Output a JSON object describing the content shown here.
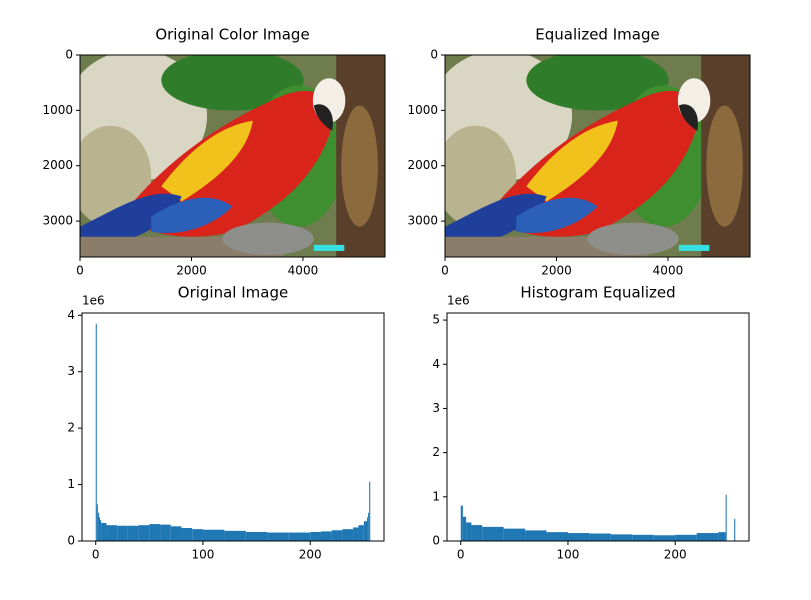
{
  "chart_data": [
    {
      "type": "image",
      "title": "Original Color Image",
      "xlim": [
        0,
        5472
      ],
      "ylim": [
        3648,
        0
      ],
      "xticks": [
        0,
        2000,
        4000
      ],
      "yticks": [
        0,
        1000,
        2000,
        3000
      ]
    },
    {
      "type": "image",
      "title": "Equalized Image",
      "xlim": [
        0,
        5472
      ],
      "ylim": [
        3648,
        0
      ],
      "xticks": [
        0,
        2000,
        4000
      ],
      "yticks": [
        0,
        1000,
        2000,
        3000
      ]
    },
    {
      "type": "histogram",
      "title": "Original Image",
      "offset_label": "1e6",
      "color": "#1f77b4",
      "bins": [
        0,
        1,
        2,
        3,
        4,
        5,
        10,
        20,
        30,
        40,
        50,
        60,
        70,
        80,
        90,
        100,
        120,
        140,
        160,
        180,
        200,
        210,
        220,
        230,
        240,
        245,
        250,
        253,
        254,
        255,
        256
      ],
      "values": [
        3.85,
        0.65,
        0.5,
        0.42,
        0.37,
        0.32,
        0.28,
        0.27,
        0.27,
        0.28,
        0.3,
        0.29,
        0.26,
        0.23,
        0.21,
        0.2,
        0.18,
        0.16,
        0.15,
        0.15,
        0.16,
        0.17,
        0.19,
        0.21,
        0.24,
        0.28,
        0.35,
        0.42,
        0.5,
        1.05
      ],
      "xlim": [
        -12.8,
        268.8
      ],
      "ylim": [
        0,
        4.04
      ],
      "xticks": [
        0,
        100,
        200
      ],
      "yticks": [
        0,
        1,
        2,
        3,
        4
      ]
    },
    {
      "type": "histogram",
      "title": "Histogram Equalized",
      "offset_label": "1e6",
      "color": "#1f77b4",
      "bins": [
        0,
        2,
        5,
        10,
        20,
        40,
        60,
        80,
        100,
        120,
        140,
        160,
        180,
        200,
        220,
        240,
        247,
        248,
        255,
        256
      ],
      "values": [
        0.8,
        0.55,
        0.42,
        0.36,
        0.32,
        0.28,
        0.24,
        0.2,
        0.18,
        0.17,
        0.15,
        0.14,
        0.13,
        0.14,
        0.18,
        0.2,
        1.05,
        0,
        0.5
      ],
      "xlim": [
        -12.8,
        268.8
      ],
      "ylim": [
        0,
        5.16
      ],
      "xticks": [
        0,
        100,
        200
      ],
      "yticks": [
        0,
        1,
        2,
        3,
        4,
        5
      ]
    }
  ]
}
